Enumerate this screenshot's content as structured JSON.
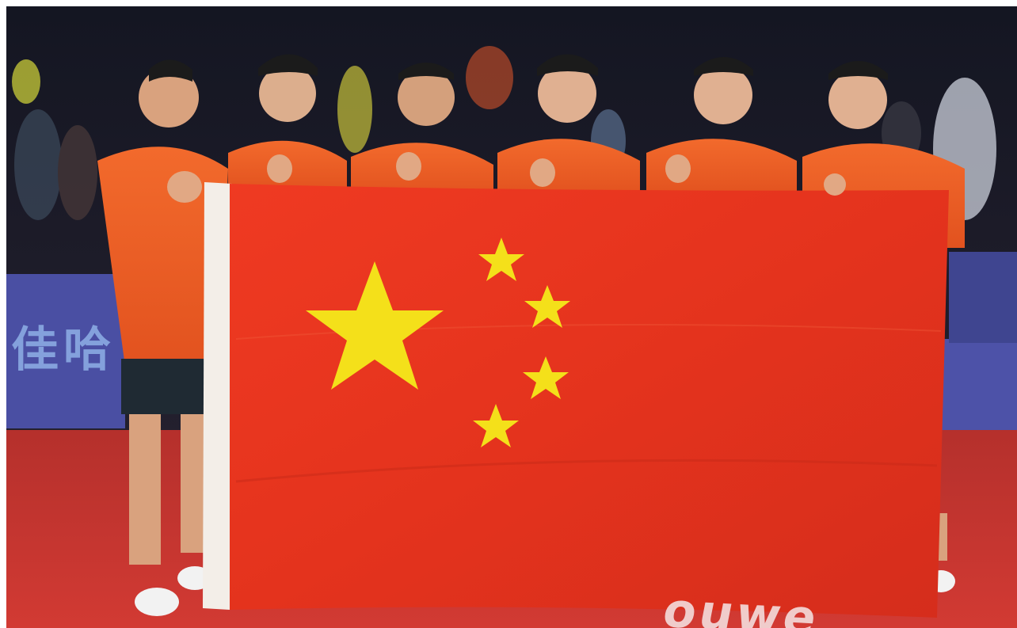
{
  "photo": {
    "description_alt": "",
    "banner_text": "佳哈",
    "floor_text": "ouwe"
  },
  "colors": {
    "flag_red": "#e8321f",
    "flag_yellow": "#f4e01a",
    "floor_red": "#c8322c",
    "barrier_purple": "#4a4fa3",
    "jersey_orange": "#e85a24"
  },
  "icons": [
    "flag-icon",
    "star-icon"
  ]
}
